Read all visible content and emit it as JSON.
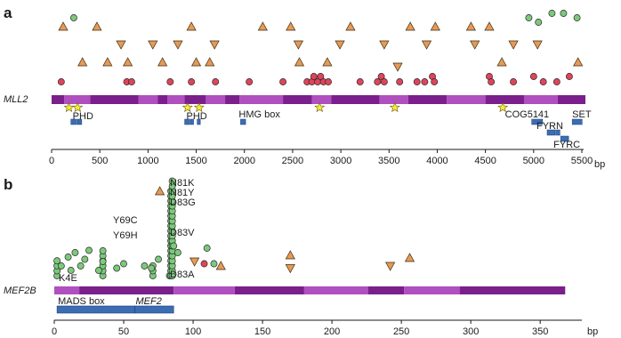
{
  "colors": {
    "missense": "#7cc97c",
    "nonsense": "#e0445a",
    "inframe": "#e69a55",
    "frameshift": "#e69a55",
    "splice": "#f5ea3c",
    "domain": "#3b6db3",
    "protein_dark": "#7a1f8c",
    "protein_light": "#b04fbf"
  },
  "chart_data": [
    {
      "type": "scatter",
      "panel": "a",
      "gene": "MLL2",
      "xlim": [
        0,
        5500
      ],
      "xticks": [
        0,
        500,
        1000,
        1500,
        2000,
        2500,
        3000,
        3500,
        4000,
        4500,
        5000,
        5500
      ],
      "xunit": "bp",
      "segments": [
        {
          "start": 0,
          "end": 130,
          "shade": "dark"
        },
        {
          "start": 130,
          "end": 400,
          "shade": "light"
        },
        {
          "start": 400,
          "end": 900,
          "shade": "dark"
        },
        {
          "start": 900,
          "end": 1100,
          "shade": "light"
        },
        {
          "start": 1100,
          "end": 1200,
          "shade": "dark"
        },
        {
          "start": 1200,
          "end": 1380,
          "shade": "light"
        },
        {
          "start": 1380,
          "end": 1600,
          "shade": "dark"
        },
        {
          "start": 1600,
          "end": 1800,
          "shade": "light"
        },
        {
          "start": 1800,
          "end": 1950,
          "shade": "dark"
        },
        {
          "start": 1950,
          "end": 2400,
          "shade": "light"
        },
        {
          "start": 2400,
          "end": 2700,
          "shade": "dark"
        },
        {
          "start": 2700,
          "end": 2900,
          "shade": "light"
        },
        {
          "start": 2900,
          "end": 3400,
          "shade": "dark"
        },
        {
          "start": 3400,
          "end": 3700,
          "shade": "light"
        },
        {
          "start": 3700,
          "end": 4100,
          "shade": "dark"
        },
        {
          "start": 4100,
          "end": 4500,
          "shade": "light"
        },
        {
          "start": 4500,
          "end": 4900,
          "shade": "dark"
        },
        {
          "start": 4900,
          "end": 5250,
          "shade": "light"
        },
        {
          "start": 5250,
          "end": 5537,
          "shade": "dark"
        }
      ],
      "splice_sites": [
        180,
        270,
        1410,
        1530,
        2780,
        3560,
        4680
      ],
      "domains": [
        {
          "label": "PHD",
          "parts": [
            [
              200,
              270
            ],
            [
              270,
              320
            ]
          ],
          "track": 1
        },
        {
          "label": "PHD",
          "parts": [
            [
              1380,
              1440
            ],
            [
              1440,
              1480
            ],
            [
              1510,
              1550
            ]
          ],
          "track": 1
        },
        {
          "label": "HMG box",
          "parts": [
            [
              1960,
              2020
            ]
          ],
          "track": 1
        },
        {
          "label": "COG5141",
          "parts": [
            [
              4980,
              5100
            ]
          ],
          "track": 1
        },
        {
          "label": "SET",
          "parts": [
            [
              5400,
              5510
            ]
          ],
          "track": 1
        },
        {
          "label": "FYRN",
          "parts": [
            [
              5140,
              5230
            ],
            [
              5230,
              5280
            ]
          ],
          "track": 2
        },
        {
          "label": "FYRC",
          "parts": [
            [
              5280,
              5370
            ]
          ],
          "track": 3
        }
      ],
      "nonsense": [
        {
          "x": 100,
          "level": 0
        },
        {
          "x": 780,
          "level": 0
        },
        {
          "x": 830,
          "level": 0
        },
        {
          "x": 1230,
          "level": 0
        },
        {
          "x": 1450,
          "level": 0
        },
        {
          "x": 1700,
          "level": 0
        },
        {
          "x": 2050,
          "level": 0
        },
        {
          "x": 2400,
          "level": 0
        },
        {
          "x": 2650,
          "level": 0
        },
        {
          "x": 2700,
          "level": 0
        },
        {
          "x": 2720,
          "level": 1
        },
        {
          "x": 2760,
          "level": 0
        },
        {
          "x": 2790,
          "level": 1
        },
        {
          "x": 2820,
          "level": 0
        },
        {
          "x": 2870,
          "level": 0
        },
        {
          "x": 3200,
          "level": 0
        },
        {
          "x": 3380,
          "level": 0
        },
        {
          "x": 3420,
          "level": 1
        },
        {
          "x": 3450,
          "level": 0
        },
        {
          "x": 3610,
          "level": 0
        },
        {
          "x": 3790,
          "level": 0
        },
        {
          "x": 3870,
          "level": 0
        },
        {
          "x": 3950,
          "level": 1
        },
        {
          "x": 3970,
          "level": 0
        },
        {
          "x": 4540,
          "level": 1
        },
        {
          "x": 4560,
          "level": 0
        },
        {
          "x": 4790,
          "level": 0
        },
        {
          "x": 5000,
          "level": 1
        },
        {
          "x": 5100,
          "level": 0
        },
        {
          "x": 5240,
          "level": 0
        },
        {
          "x": 5370,
          "level": 1
        }
      ],
      "inframe": [
        {
          "x": 120,
          "y": 80
        },
        {
          "x": 320,
          "y": 40
        },
        {
          "x": 470,
          "y": 80
        },
        {
          "x": 580,
          "y": 40
        },
        {
          "x": 790,
          "y": 40
        },
        {
          "x": 1150,
          "y": 40
        },
        {
          "x": 1450,
          "y": 80
        },
        {
          "x": 1500,
          "y": 40
        },
        {
          "x": 1640,
          "y": 40
        },
        {
          "x": 2190,
          "y": 80
        },
        {
          "x": 2480,
          "y": 80
        },
        {
          "x": 2570,
          "y": 40
        },
        {
          "x": 2860,
          "y": 40
        },
        {
          "x": 3100,
          "y": 80
        },
        {
          "x": 3720,
          "y": 80
        },
        {
          "x": 3980,
          "y": 80
        },
        {
          "x": 4350,
          "y": 80
        },
        {
          "x": 4540,
          "y": 80
        },
        {
          "x": 4670,
          "y": 40
        },
        {
          "x": 5460,
          "y": 40
        }
      ],
      "frameshift": [
        {
          "x": 720,
          "y": 50
        },
        {
          "x": 1050,
          "y": 50
        },
        {
          "x": 1310,
          "y": 50
        },
        {
          "x": 1690,
          "y": 50
        },
        {
          "x": 2560,
          "y": 50
        },
        {
          "x": 2990,
          "y": 50
        },
        {
          "x": 3450,
          "y": 50
        },
        {
          "x": 3590,
          "y": 25
        },
        {
          "x": 3890,
          "y": 50
        },
        {
          "x": 4390,
          "y": 50
        },
        {
          "x": 4790,
          "y": 50
        },
        {
          "x": 5040,
          "y": 50
        }
      ],
      "missense": [
        {
          "x": 230,
          "y": 100
        },
        {
          "x": 4950,
          "y": 100
        },
        {
          "x": 5050,
          "y": 95
        },
        {
          "x": 5190,
          "y": 105
        },
        {
          "x": 5310,
          "y": 105
        },
        {
          "x": 5450,
          "y": 100
        }
      ]
    },
    {
      "type": "scatter",
      "panel": "b",
      "gene": "MEF2B",
      "xlim": [
        0,
        380
      ],
      "xticks": [
        0,
        50,
        100,
        150,
        200,
        250,
        300,
        350
      ],
      "xunit": "bp",
      "segments": [
        {
          "start": 0,
          "end": 18,
          "shade": "light"
        },
        {
          "start": 18,
          "end": 86,
          "shade": "dark"
        },
        {
          "start": 86,
          "end": 130,
          "shade": "light"
        },
        {
          "start": 130,
          "end": 180,
          "shade": "dark"
        },
        {
          "start": 180,
          "end": 226,
          "shade": "light"
        },
        {
          "start": 226,
          "end": 252,
          "shade": "dark"
        },
        {
          "start": 252,
          "end": 292,
          "shade": "light"
        },
        {
          "start": 292,
          "end": 368,
          "shade": "dark"
        }
      ],
      "domains": [
        {
          "label": "MADS box",
          "parts": [
            [
              2,
              58
            ]
          ],
          "italic": false
        },
        {
          "label": "MEF2",
          "parts": [
            [
              58,
              86
            ]
          ],
          "italic": true
        }
      ],
      "missense_stacks": [
        {
          "x": 2,
          "count": 4
        },
        {
          "x": 35,
          "count": 6
        },
        {
          "x": 83,
          "count": 1
        },
        {
          "x": 84,
          "count": 18
        },
        {
          "x": 85,
          "count": 20
        },
        {
          "x": 71,
          "count": 3
        }
      ],
      "missense_scatter": [
        {
          "x": 5,
          "h": 30
        },
        {
          "x": 10,
          "h": 50
        },
        {
          "x": 12,
          "h": 20
        },
        {
          "x": 15,
          "h": 60
        },
        {
          "x": 19,
          "h": 30
        },
        {
          "x": 22,
          "h": 45
        },
        {
          "x": 25,
          "h": 65
        },
        {
          "x": 32,
          "h": 20
        },
        {
          "x": 35,
          "h": 40
        },
        {
          "x": 45,
          "h": 25
        },
        {
          "x": 50,
          "h": 35
        },
        {
          "x": 65,
          "h": 30
        },
        {
          "x": 70,
          "h": 25
        },
        {
          "x": 75,
          "h": 45
        },
        {
          "x": 86,
          "h": 75
        },
        {
          "x": 89,
          "h": 60
        },
        {
          "x": 110,
          "h": 70
        },
        {
          "x": 115,
          "h": 35
        }
      ],
      "nonsense": [
        {
          "x": 108,
          "h": 35
        }
      ],
      "inframe": [
        {
          "x": 76,
          "h": 165
        },
        {
          "x": 120,
          "h": 25
        },
        {
          "x": 170,
          "h": 45
        },
        {
          "x": 256,
          "h": 40
        }
      ],
      "frameshift": [
        {
          "x": 101,
          "h": 40
        },
        {
          "x": 170,
          "h": 25
        },
        {
          "x": 242,
          "h": 30
        }
      ],
      "labels": [
        {
          "text": "K4E",
          "x": 4,
          "h": 10
        },
        {
          "text": "Y69C",
          "x": 44,
          "h": 82
        },
        {
          "text": "Y69H",
          "x": 44,
          "h": 62
        },
        {
          "text": "N81K",
          "x": 90,
          "h": 118
        },
        {
          "text": "N81Y",
          "x": 90,
          "h": 108
        },
        {
          "text": "D83G",
          "x": 90,
          "h": 97
        },
        {
          "text": "D83V",
          "x": 90,
          "h": 62
        },
        {
          "text": "D83A",
          "x": 90,
          "h": 14
        }
      ]
    }
  ]
}
